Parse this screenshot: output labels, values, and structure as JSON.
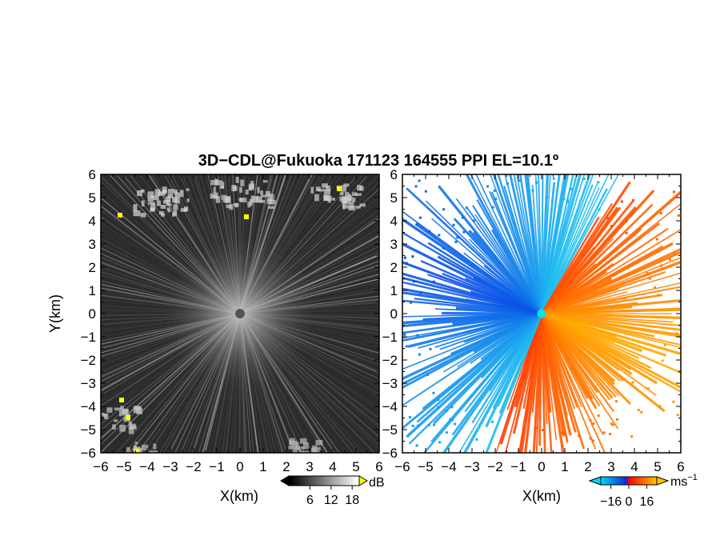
{
  "title": "3D−CDL@Fukuoka 171123 164555 PPI EL=10.1º",
  "chart_data": [
    {
      "type": "heatmap",
      "quantity": "signal intensity",
      "xlabel": "X(km)",
      "ylabel": "Y(km)",
      "xlim": [
        -6,
        6
      ],
      "ylim": [
        -6,
        6
      ],
      "x_ticks": [
        "−6",
        "−5",
        "−4",
        "−3",
        "−2",
        "−1",
        "0",
        "1",
        "2",
        "3",
        "4",
        "5",
        "6"
      ],
      "y_ticks": [
        "6",
        "5",
        "4",
        "3",
        "2",
        "1",
        "0",
        "−1",
        "−2",
        "−3",
        "−4",
        "−5",
        "−6"
      ],
      "colorbar": {
        "unit": "dB",
        "ticks": [
          "6",
          "12",
          "18"
        ],
        "tick_values": [
          6,
          12,
          18
        ],
        "range": [
          0,
          20
        ],
        "colors": [
          "#000000",
          "#ffffff"
        ],
        "over_color": "#ffff00"
      },
      "site": [
        0,
        0
      ],
      "sparse_returns": [
        "upper-left",
        "top",
        "upper-right",
        "lower-left",
        "bottom-left",
        "bottom-right"
      ]
    },
    {
      "type": "heatmap",
      "quantity": "Doppler velocity",
      "xlabel": "X(km)",
      "xlim": [
        -6,
        6
      ],
      "ylim": [
        -6,
        6
      ],
      "x_ticks": [
        "−6",
        "−5",
        "−4",
        "−3",
        "−2",
        "−1",
        "0",
        "1",
        "2",
        "3",
        "4",
        "5",
        "6"
      ],
      "y_ticks": [
        "6",
        "5",
        "4",
        "3",
        "2",
        "1",
        "0",
        "−1",
        "−2",
        "−3",
        "−4",
        "−5",
        "−6"
      ],
      "colorbar": {
        "unit": "ms",
        "unit_exponent": "−1",
        "ticks": [
          "−16",
          "0",
          "16"
        ],
        "tick_values": [
          -16,
          0,
          16
        ],
        "range": [
          -25,
          25
        ],
        "colors": [
          "#00d8f0",
          "#0a2ad8",
          "#ff0000",
          "#ffc800"
        ]
      },
      "site": [
        0,
        0
      ],
      "approaching_sector": "north-west and west",
      "receding_sector": "east and south-east",
      "no_data_color": "#ffffff"
    }
  ]
}
